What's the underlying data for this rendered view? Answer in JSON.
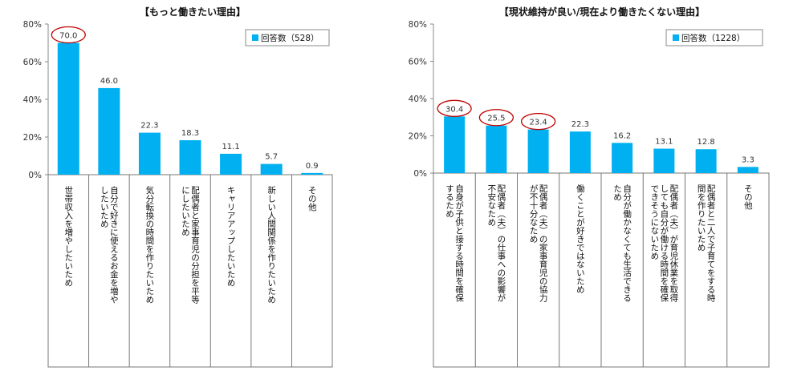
{
  "chart_data": [
    {
      "type": "bar",
      "title": "【もっと働きたい理由】",
      "legend": "回答数（528）",
      "legend_position": "top-right",
      "y_ticks": [
        "0%",
        "20%",
        "40%",
        "60%",
        "80%"
      ],
      "ylim": [
        0,
        80
      ],
      "grid": false,
      "bar_color": "#00b0f0",
      "highlight_color": "#c00000",
      "categories": [
        [
          "世帯収入を増やしたいため"
        ],
        [
          "自分で好きに使えるお金を増や",
          "したいため"
        ],
        [
          "気分転換の時間を作りたいため"
        ],
        [
          "配偶者と家事育児の分担を平等",
          "にしたいため"
        ],
        [
          "キャリアアップしたいため"
        ],
        [
          "新しい人間関係を作りたいため"
        ],
        [
          "その他"
        ]
      ],
      "values": [
        70.0,
        46.0,
        22.3,
        18.3,
        11.1,
        5.7,
        0.9
      ],
      "value_labels": [
        "70.0",
        "46.0",
        "22.3",
        "18.3",
        "11.1",
        "5.7",
        "0.9"
      ],
      "highlighted": [
        0
      ]
    },
    {
      "type": "bar",
      "title": "【現状維持が良い/現在より働きたくない理由】",
      "legend": "回答数（1228）",
      "legend_position": "top-right",
      "y_ticks": [
        "0%",
        "20%",
        "40%",
        "60%",
        "80%"
      ],
      "ylim": [
        0,
        80
      ],
      "grid": false,
      "bar_color": "#00b0f0",
      "highlight_color": "#c00000",
      "categories": [
        [
          "自身が子供と接する時間を確保",
          "するため"
        ],
        [
          "配偶者（夫）の仕事への影響が",
          "不安なため"
        ],
        [
          "配偶者（夫）の家事育児の協力",
          "が不十分なため"
        ],
        [
          "働くことが好きではないため"
        ],
        [
          "自分が働かなくても生活できる",
          "ため"
        ],
        [
          "配偶者（夫）が育児休業を取得",
          "しても自分が働ける時間を確保",
          "できそうにないため"
        ],
        [
          "配偶者と二人で子育てをする時",
          "間を作りたいため"
        ],
        [
          "その他"
        ]
      ],
      "values": [
        30.4,
        25.5,
        23.4,
        22.3,
        16.2,
        13.1,
        12.8,
        3.3
      ],
      "value_labels": [
        "30.4",
        "25.5",
        "23.4",
        "22.3",
        "16.2",
        "13.1",
        "12.8",
        "3.3"
      ],
      "highlighted": [
        0,
        1,
        2
      ]
    }
  ]
}
